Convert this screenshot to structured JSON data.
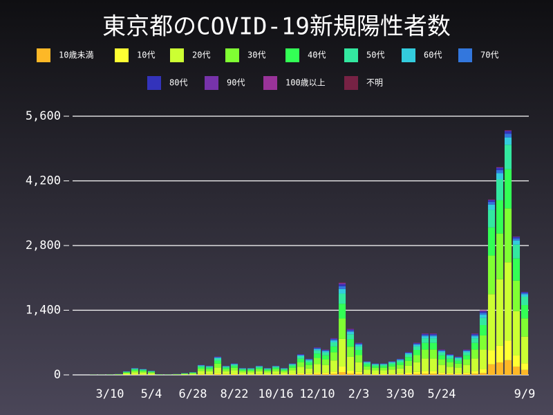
{
  "chart_data": {
    "type": "stacked_bar",
    "title": "東京都のCOVID-19新規陽性者数",
    "categories": [
      null,
      null,
      null,
      null,
      "3/10",
      null,
      null,
      null,
      null,
      "5/4",
      null,
      null,
      null,
      null,
      "6/28",
      null,
      null,
      null,
      null,
      "8/22",
      null,
      null,
      null,
      null,
      "10/16",
      null,
      null,
      null,
      null,
      "12/10",
      null,
      null,
      null,
      null,
      "2/3",
      null,
      null,
      null,
      null,
      "3/30",
      null,
      null,
      null,
      null,
      "5/24",
      null,
      null,
      null,
      null,
      null,
      null,
      null,
      null,
      null,
      "9/9"
    ],
    "ylim": [
      0,
      5600
    ],
    "yticks": [
      0,
      {
        "value": 1400,
        "label": "1,400"
      },
      {
        "value": 2800,
        "label": "2,800"
      },
      {
        "value": 4200,
        "label": "4,200"
      },
      {
        "value": 5600,
        "label": "5,600"
      }
    ],
    "grid": true,
    "series": [
      {
        "name": "10歳未満",
        "color": "#fdb827",
        "values": [
          0,
          0,
          0,
          0,
          0,
          1,
          2,
          4,
          4,
          3,
          0,
          0,
          1,
          1,
          2,
          7,
          6,
          12,
          6,
          8,
          4,
          4,
          6,
          4,
          6,
          4,
          8,
          14,
          11,
          18,
          17,
          24,
          60,
          30,
          21,
          9,
          8,
          8,
          9,
          11,
          15,
          21,
          27,
          27,
          17,
          14,
          12,
          17,
          27,
          42,
          228,
          270,
          318,
          180,
          108
        ]
      },
      {
        "name": "10代",
        "color": "#ffff33",
        "values": [
          0,
          0,
          0,
          0,
          1,
          1,
          5,
          9,
          8,
          5,
          1,
          1,
          1,
          2,
          4,
          13,
          12,
          24,
          12,
          15,
          9,
          9,
          12,
          9,
          12,
          9,
          15,
          27,
          21,
          36,
          33,
          48,
          120,
          60,
          42,
          18,
          15,
          15,
          18,
          21,
          30,
          42,
          54,
          54,
          33,
          27,
          24,
          33,
          54,
          84,
          304,
          360,
          424,
          240,
          144
        ]
      },
      {
        "name": "20代",
        "color": "#ccff33",
        "values": [
          0,
          0,
          2,
          2,
          3,
          6,
          24,
          45,
          39,
          27,
          5,
          3,
          6,
          12,
          18,
          66,
          60,
          120,
          60,
          75,
          45,
          45,
          60,
          45,
          60,
          45,
          75,
          135,
          105,
          180,
          165,
          240,
          600,
          300,
          210,
          90,
          75,
          75,
          90,
          105,
          150,
          210,
          270,
          270,
          165,
          135,
          120,
          165,
          270,
          420,
          1216,
          1440,
          1696,
          960,
          576
        ]
      },
      {
        "name": "30代",
        "color": "#80ff33",
        "values": [
          0,
          0,
          1,
          1,
          2,
          4,
          18,
          33,
          29,
          20,
          3,
          2,
          4,
          9,
          13,
          48,
          44,
          88,
          44,
          55,
          33,
          33,
          44,
          33,
          44,
          33,
          55,
          99,
          77,
          132,
          121,
          176,
          440,
          220,
          154,
          66,
          55,
          55,
          66,
          77,
          110,
          154,
          198,
          198,
          121,
          99,
          88,
          121,
          198,
          308,
          836,
          990,
          1166,
          660,
          396
        ]
      },
      {
        "name": "40代",
        "color": "#33ff55",
        "values": [
          0,
          0,
          1,
          1,
          2,
          3,
          13,
          24,
          21,
          14,
          2,
          2,
          3,
          6,
          10,
          35,
          32,
          64,
          32,
          40,
          24,
          24,
          32,
          24,
          32,
          24,
          40,
          72,
          56,
          96,
          88,
          128,
          320,
          160,
          112,
          48,
          40,
          40,
          48,
          56,
          80,
          112,
          144,
          144,
          88,
          72,
          64,
          88,
          144,
          224,
          608,
          720,
          848,
          480,
          288
        ]
      },
      {
        "name": "50代",
        "color": "#33e8a0",
        "values": [
          0,
          0,
          1,
          1,
          1,
          2,
          9,
          17,
          14,
          10,
          2,
          1,
          2,
          4,
          7,
          24,
          22,
          44,
          22,
          28,
          17,
          17,
          22,
          17,
          22,
          17,
          28,
          50,
          39,
          66,
          61,
          88,
          220,
          110,
          77,
          33,
          28,
          28,
          33,
          39,
          55,
          77,
          99,
          99,
          61,
          50,
          44,
          61,
          99,
          154,
          380,
          450,
          530,
          300,
          180
        ]
      },
      {
        "name": "60代",
        "color": "#33ccdd",
        "values": [
          0,
          0,
          0,
          0,
          1,
          1,
          4,
          8,
          7,
          5,
          1,
          1,
          1,
          2,
          3,
          11,
          10,
          20,
          10,
          13,
          8,
          8,
          10,
          8,
          10,
          8,
          13,
          23,
          18,
          30,
          28,
          40,
          100,
          50,
          35,
          15,
          13,
          13,
          15,
          18,
          25,
          35,
          45,
          45,
          28,
          23,
          20,
          28,
          45,
          70,
          114,
          135,
          159,
          90,
          54
        ]
      },
      {
        "name": "70代",
        "color": "#3377dd",
        "values": [
          0,
          0,
          0,
          0,
          0,
          1,
          2,
          5,
          4,
          3,
          1,
          0,
          1,
          2,
          2,
          7,
          6,
          12,
          6,
          8,
          5,
          5,
          6,
          5,
          6,
          5,
          8,
          14,
          11,
          18,
          17,
          24,
          60,
          30,
          21,
          9,
          8,
          8,
          9,
          11,
          15,
          21,
          27,
          27,
          17,
          14,
          12,
          17,
          27,
          42,
          57,
          68,
          80,
          45,
          27
        ]
      },
      {
        "name": "80代",
        "color": "#3333bb",
        "values": [
          0,
          0,
          0,
          0,
          0,
          1,
          2,
          3,
          3,
          2,
          0,
          0,
          1,
          1,
          1,
          4,
          4,
          8,
          4,
          5,
          3,
          3,
          4,
          3,
          4,
          3,
          5,
          9,
          7,
          12,
          11,
          16,
          40,
          20,
          14,
          6,
          5,
          5,
          6,
          7,
          10,
          14,
          18,
          18,
          11,
          9,
          8,
          11,
          18,
          28,
          38,
          45,
          53,
          30,
          18
        ]
      },
      {
        "name": "90代",
        "color": "#7733aa",
        "values": [
          0,
          0,
          0,
          0,
          0,
          0,
          1,
          2,
          1,
          1,
          0,
          0,
          0,
          1,
          0,
          2,
          2,
          4,
          2,
          2,
          2,
          2,
          2,
          2,
          2,
          2,
          2,
          5,
          3,
          6,
          5,
          8,
          20,
          10,
          7,
          3,
          2,
          2,
          3,
          3,
          5,
          7,
          9,
          9,
          5,
          5,
          4,
          5,
          9,
          14,
          11,
          14,
          16,
          9,
          5
        ]
      },
      {
        "name": "100歳以上",
        "color": "#993399",
        "values": [
          0,
          0,
          0,
          0,
          0,
          0,
          0,
          0,
          0,
          0,
          0,
          0,
          0,
          0,
          0,
          1,
          1,
          2,
          1,
          0,
          0,
          0,
          1,
          0,
          1,
          0,
          0,
          1,
          1,
          3,
          2,
          4,
          10,
          5,
          3,
          1,
          0,
          0,
          1,
          1,
          2,
          3,
          4,
          4,
          2,
          1,
          2,
          2,
          4,
          7,
          0,
          0,
          0,
          0,
          0
        ]
      },
      {
        "name": "不明",
        "color": "#772244",
        "values": [
          0,
          0,
          0,
          0,
          0,
          0,
          0,
          0,
          0,
          0,
          0,
          0,
          0,
          0,
          0,
          2,
          1,
          2,
          1,
          1,
          0,
          0,
          1,
          0,
          1,
          0,
          1,
          1,
          1,
          3,
          2,
          4,
          10,
          5,
          4,
          2,
          1,
          1,
          2,
          1,
          3,
          4,
          5,
          5,
          2,
          1,
          2,
          2,
          5,
          7,
          8,
          8,
          10,
          6,
          4
        ]
      }
    ]
  }
}
